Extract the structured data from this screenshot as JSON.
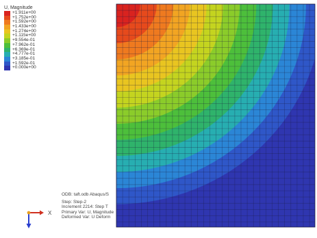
{
  "legend": {
    "title": "U, Magnitude",
    "entries": [
      {
        "label": "+1.911e+00",
        "color": "#d9231f"
      },
      {
        "label": "+1.752e+00",
        "color": "#e64a1c"
      },
      {
        "label": "+1.592e+00",
        "color": "#ef7a1f"
      },
      {
        "label": "+1.433e+00",
        "color": "#f2a522"
      },
      {
        "label": "+1.274e+00",
        "color": "#e9c520"
      },
      {
        "label": "+1.115e+00",
        "color": "#c4d41f"
      },
      {
        "label": "+9.554e-01",
        "color": "#8bcc2a"
      },
      {
        "label": "+7.962e-01",
        "color": "#4dbf3b"
      },
      {
        "label": "+6.369e-01",
        "color": "#2fb36b"
      },
      {
        "label": "+4.777e-01",
        "color": "#27aeb1"
      },
      {
        "label": "+3.185e-01",
        "color": "#2b86d6"
      },
      {
        "label": "+1.592e-01",
        "color": "#2f57c8"
      },
      {
        "label": "+0.000e+00",
        "color": "#2f36b0"
      }
    ]
  },
  "info": {
    "odb_line": "ODB: taft.odb    Abaqus/S",
    "step": "Step: Step-2",
    "increment": "Increment   2214: Step T",
    "primary_var": "Primary Var: U, Magnitude",
    "deformed_var": "Deformed Var: U   Deform"
  },
  "triad": {
    "x_label": "X"
  }
}
